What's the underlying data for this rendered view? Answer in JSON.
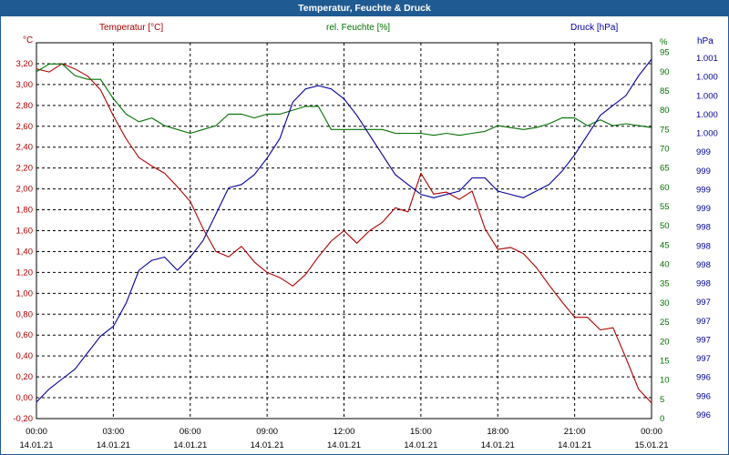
{
  "window": {
    "title": "Temperatur, Feuchte & Druck"
  },
  "legend": {
    "temperature": "Temperatur [°C]",
    "humidity": "rel. Feuchte [%]",
    "pressure": "Druck [hPa]"
  },
  "units": {
    "left": "°C",
    "right1": "%",
    "right2": "hPa"
  },
  "colors": {
    "temperature": "#b00000",
    "humidity": "#007000",
    "pressure": "#00009c",
    "title_bar": "#205a92",
    "grid": "#000000"
  },
  "chart_data": {
    "type": "line",
    "title": "Temperatur, Feuchte & Druck",
    "x": [
      "00:00",
      "00:30",
      "01:00",
      "01:30",
      "02:00",
      "02:30",
      "03:00",
      "03:30",
      "04:00",
      "04:30",
      "05:00",
      "05:30",
      "06:00",
      "06:30",
      "07:00",
      "07:30",
      "08:00",
      "08:30",
      "09:00",
      "09:30",
      "10:00",
      "10:30",
      "11:00",
      "11:30",
      "12:00",
      "12:30",
      "13:00",
      "13:30",
      "14:00",
      "14:30",
      "15:00",
      "15:30",
      "16:00",
      "16:30",
      "17:00",
      "17:30",
      "18:00",
      "18:30",
      "19:00",
      "19:30",
      "20:00",
      "20:30",
      "21:00",
      "21:30",
      "22:00",
      "22:30",
      "23:00",
      "23:30",
      "00:00"
    ],
    "x_tick_labels": [
      "00:00",
      "03:00",
      "06:00",
      "09:00",
      "12:00",
      "15:00",
      "18:00",
      "21:00",
      "00:00"
    ],
    "x_date_labels": [
      "14.01.21",
      "14.01.21",
      "14.01.21",
      "14.01.21",
      "14.01.21",
      "14.01.21",
      "14.01.21",
      "14.01.21",
      "15.01.21"
    ],
    "series": [
      {
        "name": "Temperatur [°C]",
        "axis": "left",
        "values": [
          3.15,
          3.12,
          3.2,
          3.15,
          3.08,
          2.95,
          2.7,
          2.48,
          2.3,
          2.22,
          2.15,
          2.02,
          1.88,
          1.62,
          1.4,
          1.35,
          1.45,
          1.3,
          1.2,
          1.15,
          1.07,
          1.18,
          1.35,
          1.5,
          1.6,
          1.48,
          1.6,
          1.68,
          1.82,
          1.78,
          2.15,
          1.95,
          1.97,
          1.9,
          1.98,
          1.62,
          1.42,
          1.44,
          1.38,
          1.25,
          1.08,
          0.92,
          0.77,
          0.77,
          0.65,
          0.67,
          0.38,
          0.08,
          -0.05
        ]
      },
      {
        "name": "rel. Feuchte [%]",
        "axis": "right1",
        "values": [
          90,
          92,
          92,
          89,
          88,
          88,
          83,
          79,
          77,
          78,
          76,
          75,
          74,
          75,
          76,
          79,
          79,
          78,
          79,
          79,
          80,
          81,
          81,
          75,
          75,
          75,
          75,
          75,
          74,
          74,
          74,
          73.5,
          74,
          73.5,
          74,
          74.5,
          76,
          75.5,
          75,
          75.5,
          76.5,
          78,
          78,
          76,
          77.5,
          76,
          76.5,
          76,
          75.5
        ]
      },
      {
        "name": "Druck [hPa]",
        "axis": "right2",
        "values": [
          995.85,
          996.05,
          996.2,
          996.35,
          996.6,
          996.85,
          997.0,
          997.35,
          997.85,
          998.0,
          998.05,
          997.85,
          998.05,
          998.3,
          998.7,
          999.1,
          999.15,
          999.3,
          999.55,
          999.85,
          1000.4,
          1000.6,
          1000.65,
          1000.6,
          1000.45,
          1000.2,
          999.9,
          999.6,
          999.3,
          999.15,
          999.0,
          998.95,
          999.0,
          999.05,
          999.25,
          999.25,
          999.05,
          999.0,
          998.95,
          999.05,
          999.15,
          999.35,
          999.6,
          999.9,
          1000.2,
          1000.35,
          1000.5,
          1000.8,
          1001.05
        ]
      }
    ],
    "axes": {
      "left": {
        "label": "°C",
        "ylim": [
          -0.2,
          3.4
        ],
        "ticks": [
          "-0,20",
          "0,00",
          "0,20",
          "0,40",
          "0,60",
          "0,80",
          "1,00",
          "1,20",
          "1,40",
          "1,60",
          "1,80",
          "2,00",
          "2,20",
          "2,40",
          "2,60",
          "2,80",
          "3,00",
          "3,20"
        ]
      },
      "right1": {
        "label": "%",
        "ylim": [
          0,
          97.5
        ],
        "ticks": [
          "0",
          "5",
          "10",
          "15",
          "20",
          "25",
          "30",
          "35",
          "40",
          "45",
          "50",
          "55",
          "60",
          "65",
          "70",
          "75",
          "80",
          "85",
          "90",
          "95",
          "%"
        ]
      },
      "right2": {
        "label": "hPa",
        "ylim": [
          995.6,
          1001.3
        ],
        "ticks": [
          "996",
          "996",
          "996",
          "997",
          "997",
          "997",
          "997",
          "998",
          "998",
          "998",
          "998",
          "999",
          "999",
          "999",
          "999",
          "1.000",
          "1.000",
          "1.000",
          "1.000",
          "1.001"
        ]
      }
    },
    "grid": true,
    "legend": "top"
  }
}
